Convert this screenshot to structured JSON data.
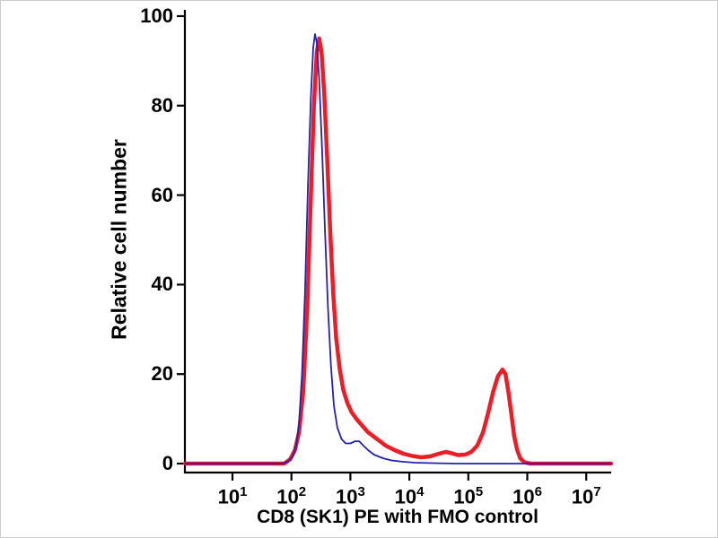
{
  "chart_data": {
    "type": "line",
    "title": "",
    "xlabel": "CD8 (SK1) PE with FMO control",
    "ylabel": "Relative cell number",
    "x_scale": "log10",
    "xlim_log10": [
      0.2,
      7.42
    ],
    "ylim": [
      0,
      100
    ],
    "grid": false,
    "legend": "none",
    "y_ticks": [
      0,
      20,
      40,
      60,
      80,
      100
    ],
    "x_ticks": [
      {
        "base": "10",
        "exp": "1"
      },
      {
        "base": "10",
        "exp": "2"
      },
      {
        "base": "10",
        "exp": "3"
      },
      {
        "base": "10",
        "exp": "4"
      },
      {
        "base": "10",
        "exp": "5"
      },
      {
        "base": "10",
        "exp": "6"
      },
      {
        "base": "10",
        "exp": "7"
      }
    ],
    "series": [
      {
        "name": "CD8 (SK1) PE (red, thick)",
        "color": "#ee1c25",
        "stroke_width": 4.5,
        "points_log10x_y": [
          [
            0.2,
            0
          ],
          [
            1.5,
            0
          ],
          [
            1.88,
            0
          ],
          [
            1.98,
            1
          ],
          [
            2.06,
            3
          ],
          [
            2.13,
            7
          ],
          [
            2.2,
            16
          ],
          [
            2.27,
            35
          ],
          [
            2.33,
            60
          ],
          [
            2.38,
            80
          ],
          [
            2.43,
            92
          ],
          [
            2.47,
            95
          ],
          [
            2.51,
            92
          ],
          [
            2.56,
            82
          ],
          [
            2.61,
            67
          ],
          [
            2.66,
            51
          ],
          [
            2.71,
            38
          ],
          [
            2.76,
            28
          ],
          [
            2.82,
            21
          ],
          [
            2.88,
            16.5
          ],
          [
            2.95,
            13.5
          ],
          [
            3.02,
            11.5
          ],
          [
            3.1,
            10
          ],
          [
            3.2,
            8.5
          ],
          [
            3.3,
            7
          ],
          [
            3.45,
            5.5
          ],
          [
            3.6,
            4
          ],
          [
            3.75,
            3
          ],
          [
            3.9,
            2.2
          ],
          [
            4.05,
            1.7
          ],
          [
            4.2,
            1.4
          ],
          [
            4.35,
            1.6
          ],
          [
            4.5,
            2.2
          ],
          [
            4.62,
            2.6
          ],
          [
            4.72,
            2.3
          ],
          [
            4.82,
            1.9
          ],
          [
            4.95,
            2
          ],
          [
            5.05,
            2.6
          ],
          [
            5.15,
            4
          ],
          [
            5.25,
            7
          ],
          [
            5.33,
            11
          ],
          [
            5.42,
            16
          ],
          [
            5.5,
            19.5
          ],
          [
            5.58,
            21
          ],
          [
            5.63,
            20
          ],
          [
            5.68,
            16
          ],
          [
            5.73,
            11
          ],
          [
            5.78,
            6
          ],
          [
            5.83,
            3
          ],
          [
            5.88,
            1.2
          ],
          [
            5.95,
            0.3
          ],
          [
            6.05,
            0
          ],
          [
            7.42,
            0
          ]
        ]
      },
      {
        "name": "FMO control (blue, thin)",
        "color": "#2121b5",
        "stroke_width": 1.8,
        "points_log10x_y": [
          [
            0.2,
            0
          ],
          [
            1.5,
            0
          ],
          [
            1.85,
            0
          ],
          [
            1.95,
            0.5
          ],
          [
            2.02,
            1.5
          ],
          [
            2.08,
            4
          ],
          [
            2.13,
            9
          ],
          [
            2.18,
            20
          ],
          [
            2.23,
            38
          ],
          [
            2.28,
            62
          ],
          [
            2.33,
            82
          ],
          [
            2.37,
            93
          ],
          [
            2.4,
            96
          ],
          [
            2.43,
            94
          ],
          [
            2.47,
            86
          ],
          [
            2.52,
            70
          ],
          [
            2.57,
            52
          ],
          [
            2.62,
            35
          ],
          [
            2.67,
            22
          ],
          [
            2.72,
            13
          ],
          [
            2.78,
            8
          ],
          [
            2.85,
            5.5
          ],
          [
            2.92,
            4.5
          ],
          [
            3.0,
            4.5
          ],
          [
            3.08,
            5
          ],
          [
            3.15,
            5
          ],
          [
            3.22,
            4
          ],
          [
            3.3,
            3
          ],
          [
            3.4,
            2
          ],
          [
            3.55,
            1.2
          ],
          [
            3.7,
            0.7
          ],
          [
            3.9,
            0.4
          ],
          [
            4.1,
            0.2
          ],
          [
            4.4,
            0.1
          ],
          [
            4.8,
            0
          ],
          [
            7.42,
            0
          ]
        ]
      }
    ],
    "axis_color": "#000000",
    "background_color": "#ffffff"
  }
}
